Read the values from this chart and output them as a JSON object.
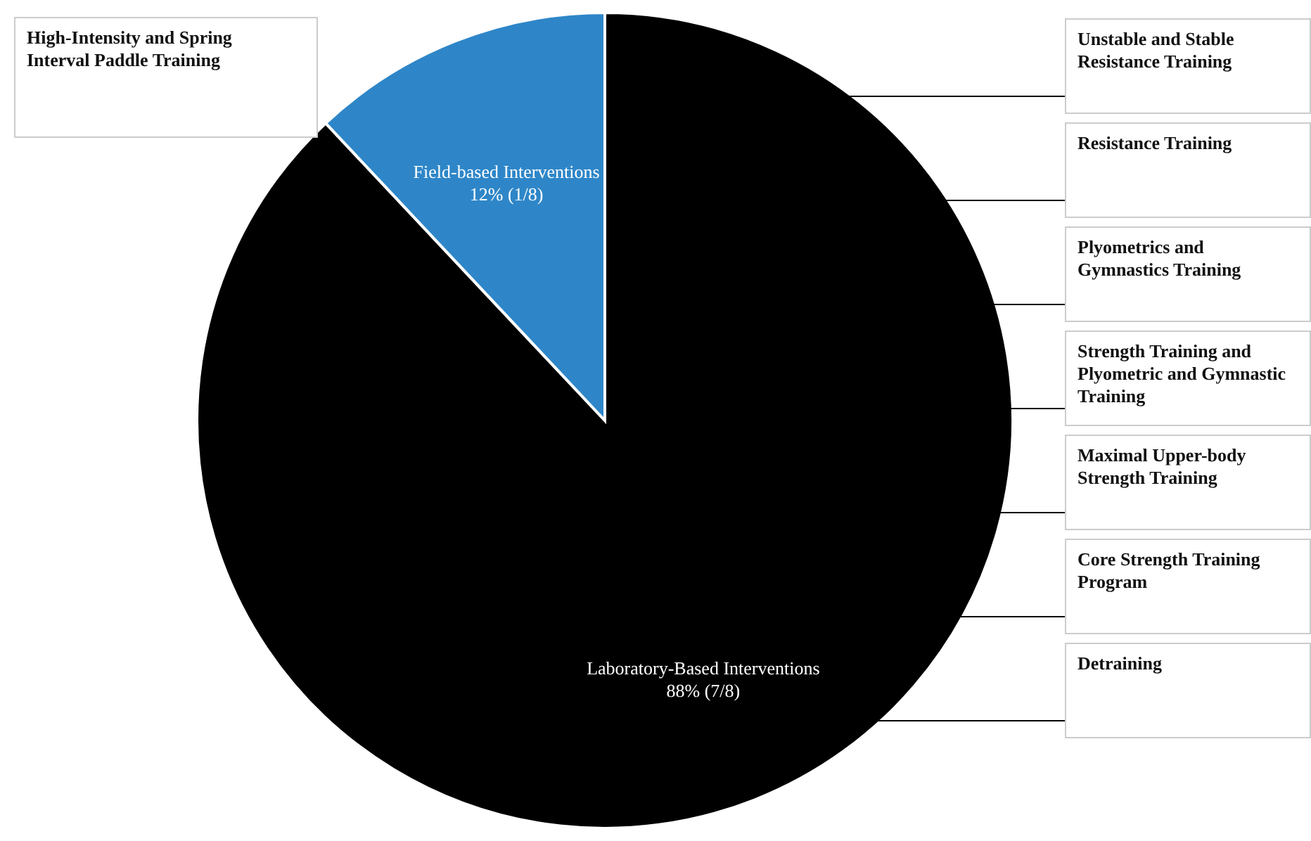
{
  "chart_data": {
    "type": "pie",
    "categories": [
      "Laboratory-Based Interventions",
      "Field-based Interventions"
    ],
    "values": [
      88,
      12
    ],
    "colors": [
      "#000000",
      "#2e86c8"
    ],
    "value_labels": [
      "88% (7/8)",
      "12% (1/8)"
    ],
    "annotations": [
      "High-Intensity and Spring Interval Paddle Training",
      "Unstable and Stable Resistance Training",
      "Resistance Training",
      "Plyometrics and Gymnastics Training",
      "Strength Training and Plyometric and Gymnastic Training",
      "Maximal Upper-body Strength Training",
      "Core Strength Training Program",
      "Detraining"
    ]
  }
}
